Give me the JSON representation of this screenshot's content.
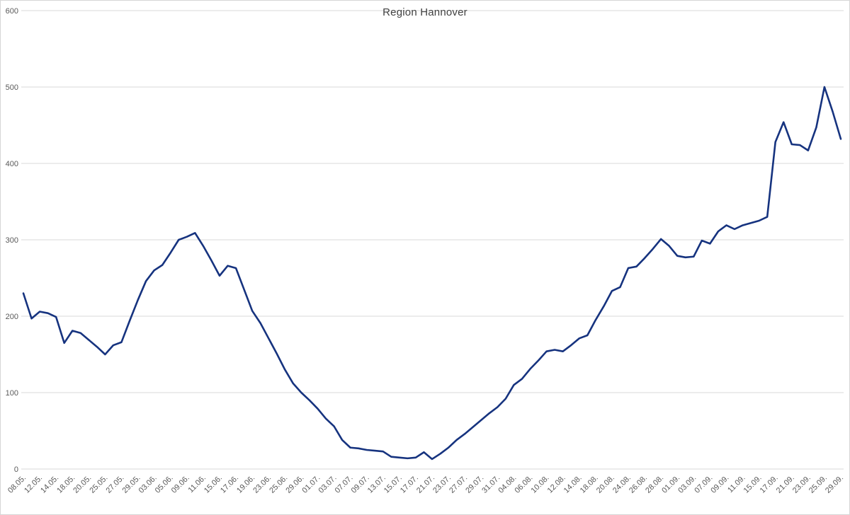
{
  "title": "Region Hannover",
  "chart_data": {
    "type": "line",
    "title": "Region Hannover",
    "xlabel": "",
    "ylabel": "",
    "ylim": [
      0,
      600
    ],
    "y_ticks": [
      0,
      100,
      200,
      300,
      400,
      500,
      600
    ],
    "grid": true,
    "legend": "none",
    "label_every": 2,
    "x_labels": [
      "08.05.",
      "12.05.",
      "14.05.",
      "18.05.",
      "20.05.",
      "25.05.",
      "27.05.",
      "29.05.",
      "03.06.",
      "05.06.",
      "09.06.",
      "11.06.",
      "15.06.",
      "17.06.",
      "19.06.",
      "23.06.",
      "25.06.",
      "29.06.",
      "01.07.",
      "03.07.",
      "07.07.",
      "09.07.",
      "13.07.",
      "15.07.",
      "17.07.",
      "21.07.",
      "23.07.",
      "27.07.",
      "29.07.",
      "31.07.",
      "04.08.",
      "06.08.",
      "10.08.",
      "12.08.",
      "14.08.",
      "18.08.",
      "20.08.",
      "24.08.",
      "26.08.",
      "28.08.",
      "01.09.",
      "03.09.",
      "07.09.",
      "09.09.",
      "11.09.",
      "15.09.",
      "17.09.",
      "21.09.",
      "23.09.",
      "25.09.",
      "29.09."
    ],
    "values": [
      230,
      197,
      206,
      204,
      199,
      165,
      181,
      178,
      169,
      160,
      150,
      162,
      166,
      194,
      221,
      246,
      260,
      267,
      283,
      300,
      304,
      309,
      292,
      273,
      253,
      266,
      263,
      235,
      207,
      191,
      171,
      151,
      130,
      112,
      100,
      90,
      79,
      66,
      56,
      38,
      28,
      27,
      25,
      24,
      23,
      16,
      15,
      14,
      15,
      22,
      13,
      20,
      28,
      38,
      46,
      55,
      64,
      73,
      81,
      92,
      110,
      118,
      131,
      142,
      154,
      156,
      154,
      162,
      171,
      175,
      195,
      213,
      233,
      238,
      263,
      265,
      276,
      288,
      301,
      292,
      279,
      277,
      278,
      299,
      295,
      311,
      319,
      314,
      319,
      322,
      325,
      330,
      428,
      454,
      425,
      424,
      417,
      447,
      500,
      468,
      432
    ],
    "line_color": "#16337f",
    "grid_color": "#d9d9d9",
    "axis_text_color": "#595959",
    "title_color": "#404040",
    "background_color": "#ffffff"
  }
}
